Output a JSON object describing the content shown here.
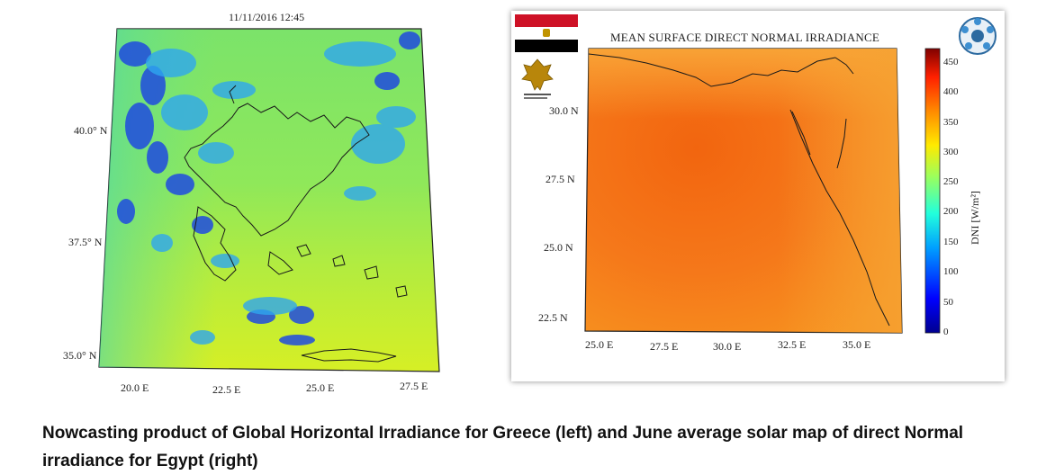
{
  "greece_map": {
    "timestamp": "11/11/2016  12:45",
    "lat_labels": [
      "40.0° N",
      "37.5° N",
      "35.0° N"
    ],
    "lon_labels": [
      "20.0  E",
      "22.5  E",
      "25.0  E",
      "27.5  E"
    ]
  },
  "egypt_map": {
    "title": "MEAN SURFACE DIRECT NORMAL IRRADIANCE",
    "lat_labels": [
      "30.0  N",
      "27.5  N",
      "25.0  N",
      "22.5  N"
    ],
    "lon_labels": [
      "25.0  E",
      "27.5  E",
      "30.0  E",
      "32.5  E",
      "35.0  E"
    ],
    "colorbar": {
      "label": "DNI [W/m²]",
      "ticks": [
        "450",
        "400",
        "350",
        "300",
        "250",
        "200",
        "150",
        "100",
        "50",
        "0"
      ]
    },
    "logos": [
      "egypt-flag",
      "ministry-logo",
      "cradle-logo"
    ]
  },
  "caption": "Nowcasting product of Global Horizontal Irradiance for Greece (left) and June average solar map of direct Normal irradiance for Egypt (right)"
}
